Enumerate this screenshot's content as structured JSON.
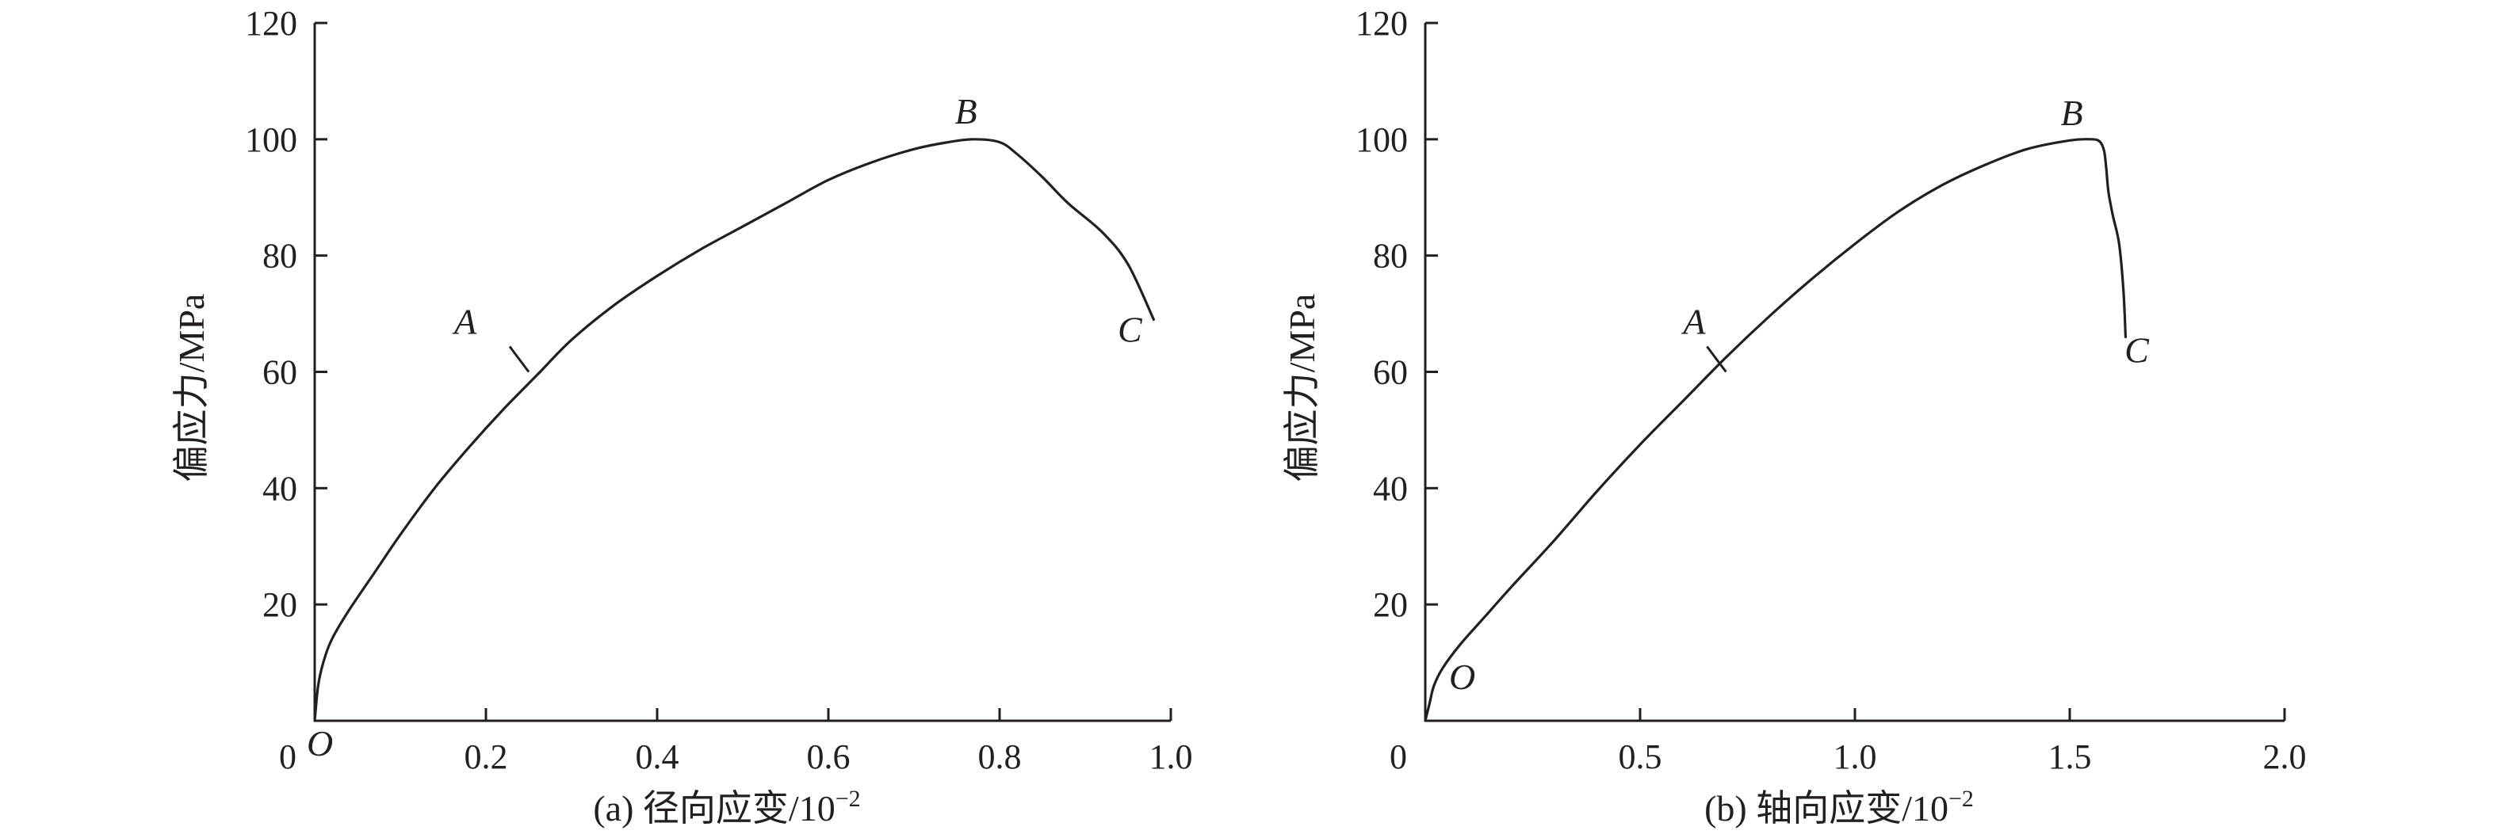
{
  "chart_data": [
    {
      "type": "line",
      "title": "",
      "xlabel": "(a) 径向应变/10",
      "xlabel_exponent": "−2",
      "ylabel": "偏应力/MPa",
      "xlim": [
        0,
        1.0
      ],
      "ylim": [
        0,
        120
      ],
      "x_ticks": [
        "0",
        "0.2",
        "0.4",
        "0.6",
        "0.8",
        "1.0"
      ],
      "x_tick_values": [
        0,
        0.2,
        0.4,
        0.6,
        0.8,
        1.0
      ],
      "y_ticks": [
        "20",
        "40",
        "60",
        "80",
        "100",
        "120"
      ],
      "y_tick_values": [
        20,
        40,
        60,
        80,
        100,
        120
      ],
      "grid": false,
      "series": [
        {
          "x": [
            0,
            0.004,
            0.01,
            0.02,
            0.04,
            0.07,
            0.1,
            0.14,
            0.18,
            0.22,
            0.26,
            0.3,
            0.35,
            0.4,
            0.45,
            0.5,
            0.55,
            0.6,
            0.65,
            0.7,
            0.74,
            0.77,
            0.8,
            0.82,
            0.85,
            0.88,
            0.92,
            0.95,
            0.98
          ],
          "y": [
            0,
            6,
            10,
            14,
            19,
            25.5,
            32,
            40,
            47,
            53.5,
            59.5,
            65.5,
            71.5,
            76.5,
            81,
            85,
            89,
            93,
            96,
            98.3,
            99.5,
            100,
            99.5,
            97.5,
            93.5,
            89,
            84,
            78.5,
            69
          ]
        }
      ],
      "annotations": [
        {
          "label": "O",
          "x": 0.0,
          "y": 0
        },
        {
          "label": "A",
          "x": 0.25,
          "y": 60
        },
        {
          "label": "B",
          "x": 0.77,
          "y": 100
        },
        {
          "label": "C",
          "x": 0.98,
          "y": 69
        }
      ]
    },
    {
      "type": "line",
      "title": "",
      "xlabel": "(b) 轴向应变/10",
      "xlabel_exponent": "−2",
      "ylabel": "偏应力/MPa",
      "xlim": [
        0,
        2.0
      ],
      "ylim": [
        0,
        120
      ],
      "x_ticks": [
        "0",
        "0.5",
        "1.0",
        "1.5",
        "2.0"
      ],
      "x_tick_values": [
        0,
        0.5,
        1.0,
        1.5,
        2.0
      ],
      "y_ticks": [
        "20",
        "40",
        "60",
        "80",
        "100",
        "120"
      ],
      "y_tick_values": [
        20,
        40,
        60,
        80,
        100,
        120
      ],
      "grid": false,
      "series": [
        {
          "x": [
            0,
            0.01,
            0.02,
            0.04,
            0.08,
            0.14,
            0.2,
            0.3,
            0.4,
            0.5,
            0.6,
            0.7,
            0.8,
            0.9,
            1.0,
            1.1,
            1.2,
            1.3,
            1.4,
            1.5,
            1.55,
            1.57,
            1.58,
            1.585,
            1.59,
            1.6,
            1.615,
            1.625,
            1.63
          ],
          "y": [
            0,
            3,
            6,
            9,
            13,
            18,
            23,
            31,
            39.5,
            47.5,
            55,
            62.5,
            69.5,
            76,
            82,
            87.5,
            92,
            95.5,
            98.3,
            99.8,
            100,
            99.6,
            98,
            95,
            91,
            87,
            82,
            74,
            66
          ]
        }
      ],
      "annotations": [
        {
          "label": "O",
          "x": 0.0,
          "y": 0
        },
        {
          "label": "A",
          "x": 0.7,
          "y": 60
        },
        {
          "label": "B",
          "x": 1.56,
          "y": 100
        },
        {
          "label": "C",
          "x": 1.63,
          "y": 66
        }
      ]
    }
  ]
}
